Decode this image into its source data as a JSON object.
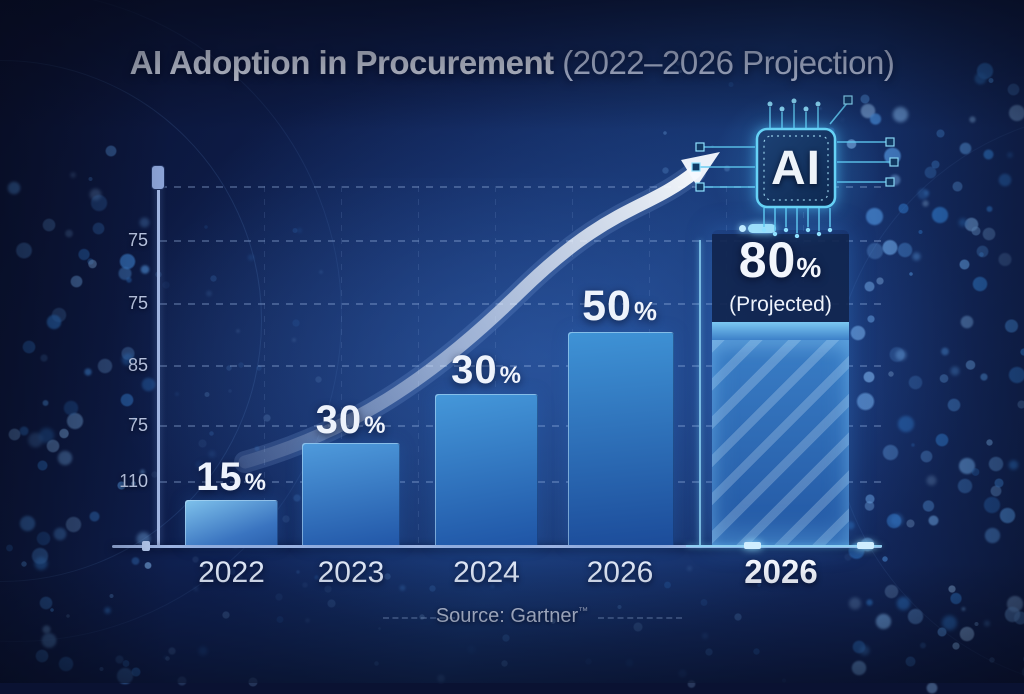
{
  "title": {
    "main": "AI Adoption in Procurement",
    "sub": " (2022–2026 Projection)"
  },
  "chip": {
    "label": "AI"
  },
  "source": {
    "text": "Source: Gartner",
    "mark": "™"
  },
  "chart_data": {
    "type": "bar",
    "title": "AI Adoption in Procurement (2022–2026 Projection)",
    "categories": [
      "2022",
      "2023",
      "2024",
      "2026",
      "2026"
    ],
    "values": [
      15,
      30,
      30,
      50,
      80
    ],
    "unit": "%",
    "bars": [
      {
        "year": "2022",
        "num": "15",
        "sym": "%",
        "value": 15
      },
      {
        "year": "2023",
        "num": "30",
        "sym": "%",
        "value": 30
      },
      {
        "year": "2024",
        "num": "30",
        "sym": "%",
        "value": 30
      },
      {
        "year": "2026",
        "num": "50",
        "sym": "%",
        "value": 50
      },
      {
        "year": "2026",
        "num": "80",
        "sym": "%",
        "value": 80,
        "sublabel": "(Projected)",
        "projected": true
      }
    ],
    "y_axis": {
      "tick_labels_top_to_bottom": [
        "75",
        "75",
        "85",
        "75",
        "110"
      ]
    },
    "xlabel": "",
    "ylabel": "",
    "ylim": [
      0,
      100
    ],
    "grid": true,
    "legend": null,
    "source": "Source: Gartner",
    "annotations": [
      "upward trend arrow",
      "AI chip icon",
      "final bar hatched = projected"
    ]
  },
  "colors": {
    "background_navy": "#0d1d4a",
    "bar_gradient_top": "#56a3e0",
    "bar_gradient_bottom": "#1e4f9e",
    "accent_cyan": "#6fd0f4",
    "text_light": "#e8eefb",
    "projected_panel": "#13294f"
  }
}
